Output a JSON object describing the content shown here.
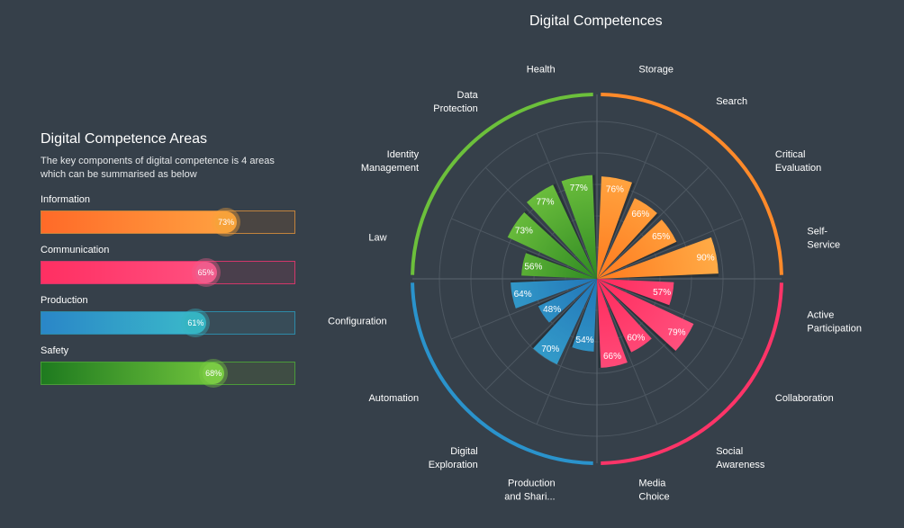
{
  "panel": {
    "title": "Digital Competence Areas",
    "description_line1": "The key components of digital competence is 4 areas",
    "description_line2": "which can be summarised as below"
  },
  "areas": [
    {
      "label": "Information",
      "value": 73,
      "value_label": "73%",
      "color_start": "#ff6a28",
      "color_end": "#ffa040",
      "track": "#4a4542",
      "border": "#c2833d",
      "knob": "#f7a23a"
    },
    {
      "label": "Communication",
      "value": 65,
      "value_label": "65%",
      "color_start": "#ff2f62",
      "color_end": "#ff4f7f",
      "track": "#4a3f4c",
      "border": "#d2376a",
      "knob": "#f05c8c"
    },
    {
      "label": "Production",
      "value": 61,
      "value_label": "61%",
      "color_start": "#2a86c8",
      "color_end": "#3ab8c9",
      "track": "#384c58",
      "border": "#2d8aa8",
      "knob": "#35b4c2"
    },
    {
      "label": "Safety",
      "value": 68,
      "value_label": "68%",
      "color_start": "#1e7a1f",
      "color_end": "#6fc23c",
      "track": "#3f4d44",
      "border": "#4b9b3a",
      "knob": "#7acb44"
    }
  ],
  "chart_data": {
    "type": "polar-bar",
    "title": "Digital Competences",
    "rlim": [
      0,
      100
    ],
    "categories": [
      "Storage",
      "Search",
      "Critical Evaluation",
      "Self-Service",
      "Active Participation",
      "Collaboration",
      "Social Awareness",
      "Media Choice",
      "Production and Shari...",
      "Digital Exploration",
      "Automation",
      "Configuration",
      "Law",
      "Identity Management",
      "Data Protection",
      "Health"
    ],
    "category_lines": [
      [
        "Storage"
      ],
      [
        "Search"
      ],
      [
        "Critical",
        "Evaluation"
      ],
      [
        "Self-",
        "Service"
      ],
      [
        "Active",
        "Participation"
      ],
      [
        "Collaboration"
      ],
      [
        "Social",
        "Awareness"
      ],
      [
        "Media",
        "Choice"
      ],
      [
        "Production",
        "and Shari..."
      ],
      [
        "Digital",
        "Exploration"
      ],
      [
        "Automation"
      ],
      [
        "Configuration"
      ],
      [
        "Law"
      ],
      [
        "Identity",
        "Management"
      ],
      [
        "Data",
        "Protection"
      ],
      [
        "Health"
      ]
    ],
    "values": [
      76,
      66,
      65,
      90,
      57,
      79,
      60,
      66,
      54,
      70,
      48,
      64,
      56,
      73,
      77,
      77
    ],
    "value_labels": [
      "76%",
      "66%",
      "65%",
      "90%",
      "57%",
      "79%",
      "60%",
      "66%",
      "54%",
      "70%",
      "48%",
      "64%",
      "56%",
      "73%",
      "77%",
      "77%"
    ],
    "groups": [
      {
        "name": "Information",
        "color": "#ff8a2a"
      },
      {
        "name": "Communication",
        "color": "#ff3468"
      },
      {
        "name": "Production",
        "color": "#2a93cc"
      },
      {
        "name": "Safety",
        "color": "#6cc03b"
      }
    ],
    "group_of_category": [
      0,
      0,
      0,
      0,
      1,
      1,
      1,
      1,
      2,
      2,
      2,
      2,
      3,
      3,
      3,
      3
    ],
    "grid": true
  }
}
